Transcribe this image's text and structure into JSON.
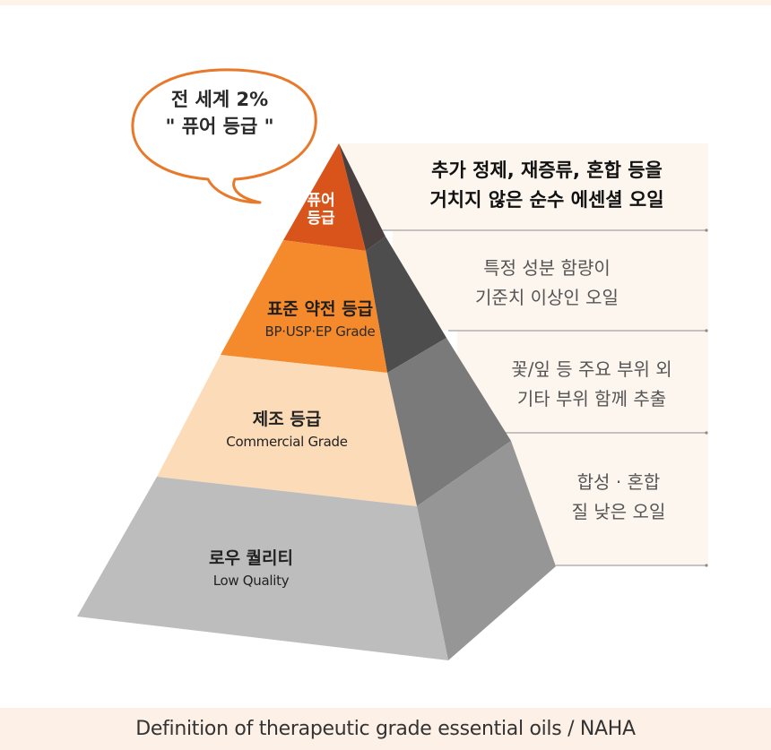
{
  "bubble": {
    "line1": "전 세계 2%",
    "line2": "\" 퓨어 등급 \""
  },
  "tiers": [
    {
      "ko": "퓨어 등급",
      "ko_line1": "퓨어",
      "ko_line2": "등급",
      "en": "",
      "color": "#d9541a"
    },
    {
      "ko": "표준 약전 등급",
      "en": "BP·USP·EP Grade",
      "color": "#f58a2c"
    },
    {
      "ko": "제조 등급",
      "en": "Commercial Grade",
      "color": "#fcdcb8"
    },
    {
      "ko": "로우 퀄리티",
      "en": "Low Quality",
      "color": "#bdbdbd"
    }
  ],
  "descriptions": [
    {
      "line1": "추가 정제, 재증류, 혼합 등을",
      "line2": "거치지 않은 순수 에센셜 오일"
    },
    {
      "line1": "특정 성분 함량이",
      "line2": "기준치 이상인 오일"
    },
    {
      "line1": "꽃/잎 등 주요 부위 외",
      "line2": "기타 부위 함께 추출"
    },
    {
      "line1": "합성 · 혼합",
      "line2": "질 낮은 오일"
    }
  ],
  "footer": "Definition of therapeutic grade essential oils / NAHA",
  "colors": {
    "panel": "#fdf6ef",
    "divider": "#8c8c8c",
    "bubble_stroke": "#e8792a",
    "pure_side": "#4a4040",
    "std_side": "#4d4d4d",
    "com_side": "#7a7a7a",
    "low_side": "#969696"
  }
}
